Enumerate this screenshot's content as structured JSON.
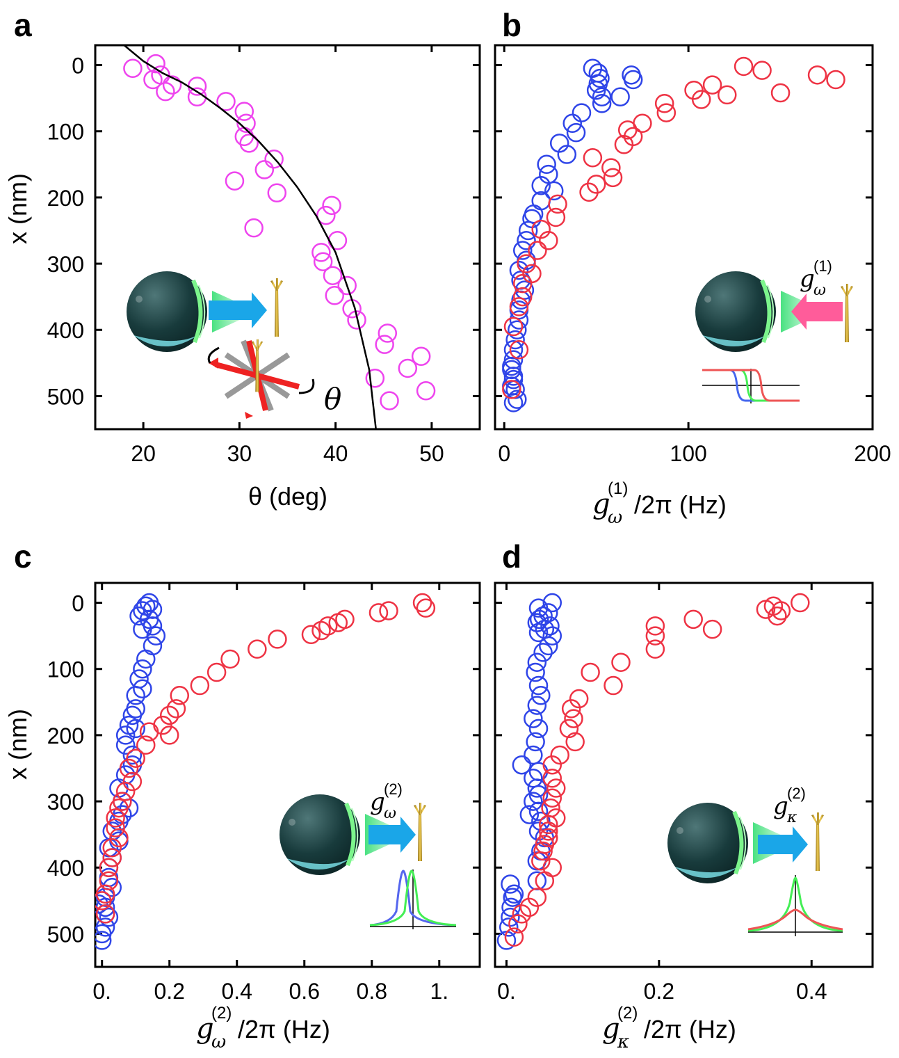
{
  "panels": [
    {
      "label": "a",
      "xlabel": "θ (deg)",
      "ylabel": "x (nm)",
      "xticks": [
        "20",
        "30",
        "40",
        "50"
      ],
      "yticks": [
        "0",
        "100",
        "200",
        "300",
        "400",
        "500"
      ],
      "inset_label": "θ"
    },
    {
      "label": "b",
      "xlabel_main": "g",
      "xlabel_sub": "ω",
      "xlabel_sup": "(1)",
      "xlabel_tail": "/2π (Hz)",
      "ylabel": "",
      "xticks": [
        "0",
        "100",
        "200"
      ],
      "yticks": [],
      "inset_label_main": "g",
      "inset_label_sub": "ω",
      "inset_label_sup": "(1)"
    },
    {
      "label": "c",
      "xlabel_main": "g",
      "xlabel_sub": "ω",
      "xlabel_sup": "(2)",
      "xlabel_tail": "/2π (Hz)",
      "ylabel": "x (nm)",
      "xticks": [
        "0.",
        "0.2",
        "0.4",
        "0.6",
        "0.8",
        "1."
      ],
      "yticks": [
        "0",
        "100",
        "200",
        "300",
        "400",
        "500"
      ],
      "inset_label_main": "g",
      "inset_label_sub": "ω",
      "inset_label_sup": "(2)"
    },
    {
      "label": "d",
      "xlabel_main": "g",
      "xlabel_sub": "κ",
      "xlabel_sup": "(2)",
      "xlabel_tail": "/2π (Hz)",
      "ylabel": "",
      "xticks": [
        "0.",
        "0.2",
        "0.4"
      ],
      "yticks": [],
      "inset_label_main": "g",
      "inset_label_sub": "κ",
      "inset_label_sup": "(2)"
    }
  ],
  "colors": {
    "magenta": "#ee44ee",
    "blue": "#2f45e8",
    "red": "#ee3344",
    "fit": "#000000"
  },
  "chart_data": [
    {
      "type": "scatter",
      "panel": "a",
      "xlim": [
        15,
        55
      ],
      "ylim": [
        550,
        -30
      ],
      "xtick_values": [
        20,
        30,
        40,
        50
      ],
      "ytick_values": [
        0,
        100,
        200,
        300,
        400,
        500
      ],
      "series": [
        {
          "color": "#ee44ee",
          "x": [
            18.9,
            21.3,
            21.8,
            21.0,
            22.3,
            23.0,
            25.6,
            25.6,
            28.6,
            30.5,
            30.7,
            30.5,
            31.0,
            33.6,
            32.6,
            33.9,
            29.5,
            31.5,
            39.6,
            39.0,
            40.2,
            38.5,
            38.7,
            39.7,
            41.2,
            39.9,
            41.7,
            42.2,
            45.4,
            45.1,
            48.9,
            44.1,
            47.5,
            49.4,
            45.6
          ],
          "y": [
            5,
            -2,
            15,
            22,
            40,
            30,
            32,
            48,
            55,
            70,
            88,
            108,
            118,
            142,
            158,
            193,
            175,
            246,
            212,
            227,
            265,
            283,
            297,
            318,
            333,
            348,
            368,
            385,
            405,
            422,
            440,
            473,
            458,
            492,
            507
          ]
        }
      ],
      "fit": {
        "x": [
          18.0,
          20.0,
          22.0,
          24.0,
          26.0,
          28.0,
          30.0,
          32.0,
          34.0,
          36.0,
          38.0,
          40.0,
          42.0,
          43.5,
          44.2
        ],
        "y": [
          -30,
          -6,
          12,
          26,
          44,
          65,
          88,
          115,
          147,
          184,
          228,
          283,
          367,
          460,
          550
        ]
      }
    },
    {
      "type": "scatter",
      "panel": "b",
      "xlim": [
        -5,
        200
      ],
      "ylim": [
        550,
        -30
      ],
      "xtick_values": [
        0,
        100,
        200
      ],
      "series": [
        {
          "color": "#2f45e8",
          "x": [
            48,
            51,
            52,
            51,
            50,
            53,
            69,
            70,
            63,
            53,
            42,
            37,
            39,
            30,
            34,
            23,
            24,
            20,
            27,
            20,
            16,
            15,
            13,
            12,
            10,
            12,
            8,
            9,
            11,
            9,
            8,
            8,
            7,
            6,
            5,
            5,
            4,
            5,
            6,
            7,
            4,
            5,
            4,
            5
          ],
          "y": [
            5,
            12,
            20,
            28,
            38,
            48,
            15,
            22,
            48,
            58,
            72,
            88,
            102,
            118,
            135,
            150,
            165,
            182,
            190,
            205,
            225,
            232,
            250,
            265,
            280,
            295,
            310,
            325,
            340,
            355,
            370,
            385,
            400,
            415,
            430,
            445,
            460,
            475,
            490,
            505,
            485,
            470,
            455,
            510
          ]
        },
        {
          "color": "#ee3344",
          "x": [
            130,
            140,
            170,
            180,
            113,
            103,
            121,
            107,
            87,
            88,
            150,
            75,
            67,
            70,
            65,
            48,
            58,
            59,
            50,
            46,
            29,
            28,
            20,
            24,
            18,
            12,
            15,
            10,
            10,
            8,
            5,
            8,
            4
          ],
          "y": [
            2,
            8,
            15,
            22,
            30,
            38,
            45,
            52,
            58,
            72,
            42,
            88,
            98,
            108,
            120,
            140,
            155,
            170,
            180,
            192,
            210,
            230,
            248,
            265,
            280,
            300,
            315,
            330,
            350,
            365,
            395,
            430,
            490
          ]
        }
      ]
    },
    {
      "type": "scatter",
      "panel": "c",
      "xlim": [
        -0.02,
        1.12
      ],
      "ylim": [
        550,
        -30
      ],
      "xtick_values": [
        0,
        0.2,
        0.4,
        0.6,
        0.8,
        1.0
      ],
      "series": [
        {
          "color": "#2f45e8",
          "x": [
            0.14,
            0.13,
            0.15,
            0.12,
            0.11,
            0.14,
            0.12,
            0.15,
            0.16,
            0.15,
            0.13,
            0.12,
            0.11,
            0.12,
            0.1,
            0.1,
            0.09,
            0.1,
            0.08,
            0.07,
            0.07,
            0.09,
            0.09,
            0.07,
            0.05,
            0.06,
            0.08,
            0.06,
            0.05,
            0.03,
            0.05,
            0.02,
            0.03,
            0.02,
            0.02,
            0.03,
            0.01,
            0.01,
            0.02,
            0.01,
            0.0,
            0.0,
            0.01,
            -0.01
          ],
          "y": [
            0,
            5,
            10,
            12,
            20,
            25,
            40,
            35,
            50,
            65,
            85,
            100,
            115,
            130,
            140,
            160,
            170,
            190,
            185,
            200,
            215,
            230,
            245,
            260,
            280,
            300,
            310,
            320,
            330,
            345,
            360,
            370,
            385,
            400,
            415,
            430,
            445,
            460,
            475,
            490,
            500,
            510,
            470,
            455
          ]
        },
        {
          "color": "#ee3344",
          "x": [
            0.95,
            0.96,
            0.82,
            0.85,
            0.72,
            0.7,
            0.67,
            0.65,
            0.62,
            0.52,
            0.46,
            0.38,
            0.34,
            0.29,
            0.23,
            0.22,
            0.2,
            0.18,
            0.2,
            0.14,
            0.13,
            0.1,
            0.08,
            0.09,
            0.07,
            0.06,
            0.05,
            0.04,
            0.04,
            0.05,
            0.03,
            0.03,
            0.02,
            0.02,
            0.01,
            0.0,
            0.01
          ],
          "y": [
            0,
            8,
            15,
            12,
            25,
            30,
            35,
            42,
            48,
            55,
            70,
            85,
            105,
            125,
            140,
            160,
            170,
            185,
            200,
            195,
            215,
            235,
            250,
            270,
            285,
            300,
            310,
            325,
            340,
            355,
            370,
            385,
            400,
            420,
            440,
            450,
            470
          ]
        }
      ]
    },
    {
      "type": "scatter",
      "panel": "d",
      "xlim": [
        -0.015,
        0.48
      ],
      "ylim": [
        550,
        -30
      ],
      "xtick_values": [
        0,
        0.2,
        0.4
      ],
      "series": [
        {
          "color": "#2f45e8",
          "x": [
            0.06,
            0.042,
            0.055,
            0.048,
            0.043,
            0.04,
            0.057,
            0.05,
            0.042,
            0.06,
            0.055,
            0.048,
            0.04,
            0.038,
            0.042,
            0.045,
            0.04,
            0.035,
            0.042,
            0.038,
            0.035,
            0.02,
            0.042,
            0.035,
            0.04,
            0.042,
            0.035,
            0.042,
            0.03,
            0.045,
            0.042,
            0.05,
            0.045,
            0.04,
            0.04,
            0.01,
            0.008,
            0.006,
            0.005,
            0.003,
            0.0,
            0.005
          ],
          "y": [
            0,
            8,
            15,
            20,
            25,
            30,
            35,
            40,
            45,
            50,
            65,
            75,
            90,
            105,
            125,
            140,
            155,
            175,
            190,
            210,
            230,
            245,
            255,
            265,
            280,
            290,
            300,
            315,
            320,
            330,
            345,
            355,
            375,
            390,
            420,
            440,
            445,
            460,
            475,
            490,
            510,
            425
          ]
        },
        {
          "color": "#ee3344",
          "x": [
            0.385,
            0.35,
            0.36,
            0.34,
            0.355,
            0.245,
            0.27,
            0.195,
            0.195,
            0.195,
            0.15,
            0.14,
            0.11,
            0.095,
            0.085,
            0.088,
            0.082,
            0.09,
            0.07,
            0.06,
            0.06,
            0.065,
            0.06,
            0.058,
            0.065,
            0.055,
            0.055,
            0.055,
            0.05,
            0.048,
            0.045,
            0.06,
            0.05,
            0.04,
            0.03,
            0.02,
            0.015,
            0.01
          ],
          "y": [
            0,
            5,
            12,
            10,
            20,
            25,
            40,
            35,
            50,
            70,
            90,
            125,
            105,
            145,
            160,
            175,
            190,
            210,
            230,
            245,
            265,
            280,
            295,
            310,
            325,
            335,
            345,
            355,
            365,
            375,
            390,
            400,
            420,
            445,
            460,
            470,
            485,
            505
          ]
        }
      ]
    }
  ]
}
